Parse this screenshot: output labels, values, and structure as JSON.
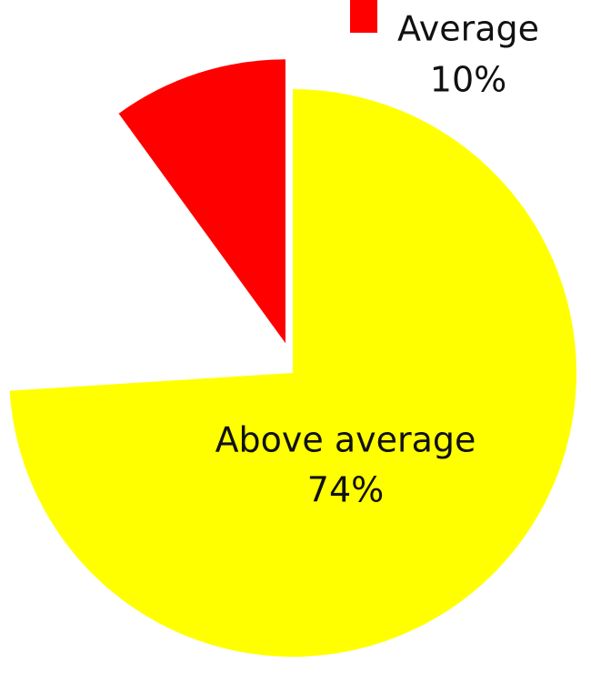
{
  "chart_data": {
    "type": "pie",
    "categories": [
      "Above average",
      "Average"
    ],
    "values": [
      74,
      10
    ],
    "value_labels": [
      "74%",
      "10%"
    ],
    "colors": [
      "#ffff00",
      "#ff0000"
    ]
  }
}
